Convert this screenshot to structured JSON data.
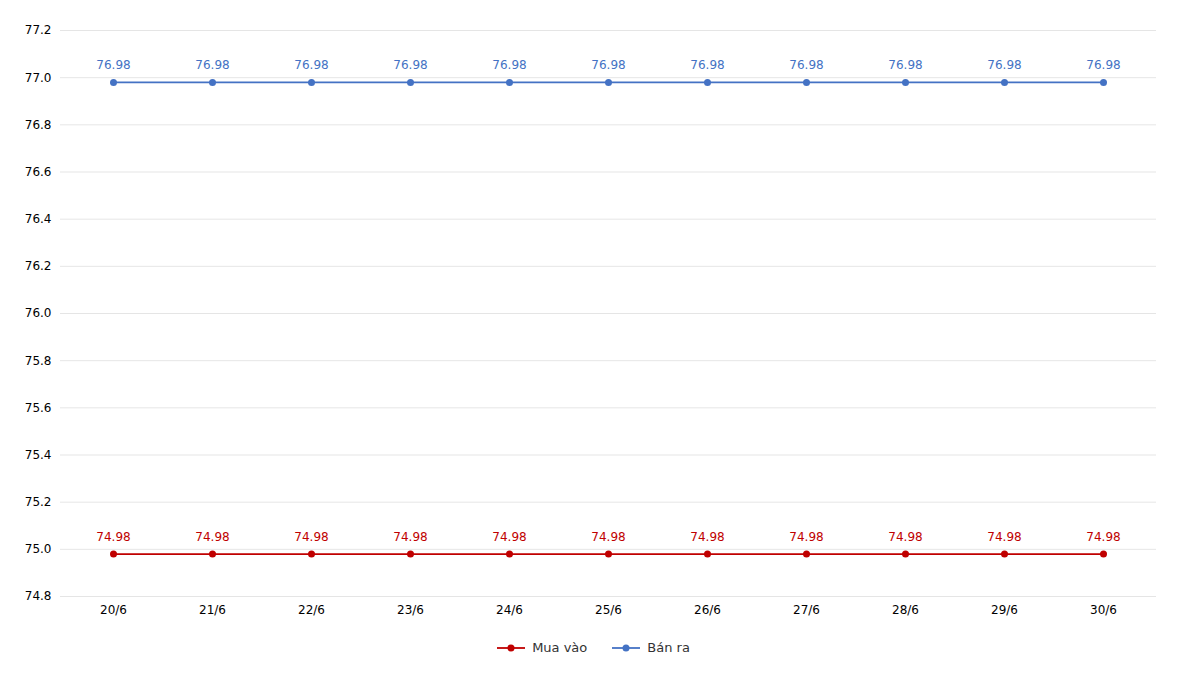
{
  "chart_data": {
    "type": "line",
    "categories": [
      "20/6",
      "21/6",
      "22/6",
      "23/6",
      "24/6",
      "25/6",
      "26/6",
      "27/6",
      "28/6",
      "29/6",
      "30/6"
    ],
    "series": [
      {
        "name": "Mua vào",
        "color": "#C00000",
        "values": [
          74.98,
          74.98,
          74.98,
          74.98,
          74.98,
          74.98,
          74.98,
          74.98,
          74.98,
          74.98,
          74.98
        ]
      },
      {
        "name": "Bán ra",
        "color": "#4472C4",
        "values": [
          76.98,
          76.98,
          76.98,
          76.98,
          76.98,
          76.98,
          76.98,
          76.98,
          76.98,
          76.98,
          76.98
        ]
      }
    ],
    "ylim": [
      74.8,
      77.2
    ],
    "yticks": [
      74.8,
      {
        "value": 75,
        "label": "75.0"
      },
      75.2,
      75.4,
      75.6,
      75.8,
      {
        "value": 76,
        "label": "76.0"
      },
      76.2,
      76.4,
      76.6,
      76.8,
      {
        "value": 77,
        "label": "77.0"
      },
      77.2
    ],
    "grid": true,
    "legend": "bottom",
    "data_labels": true,
    "marker": "circle"
  }
}
